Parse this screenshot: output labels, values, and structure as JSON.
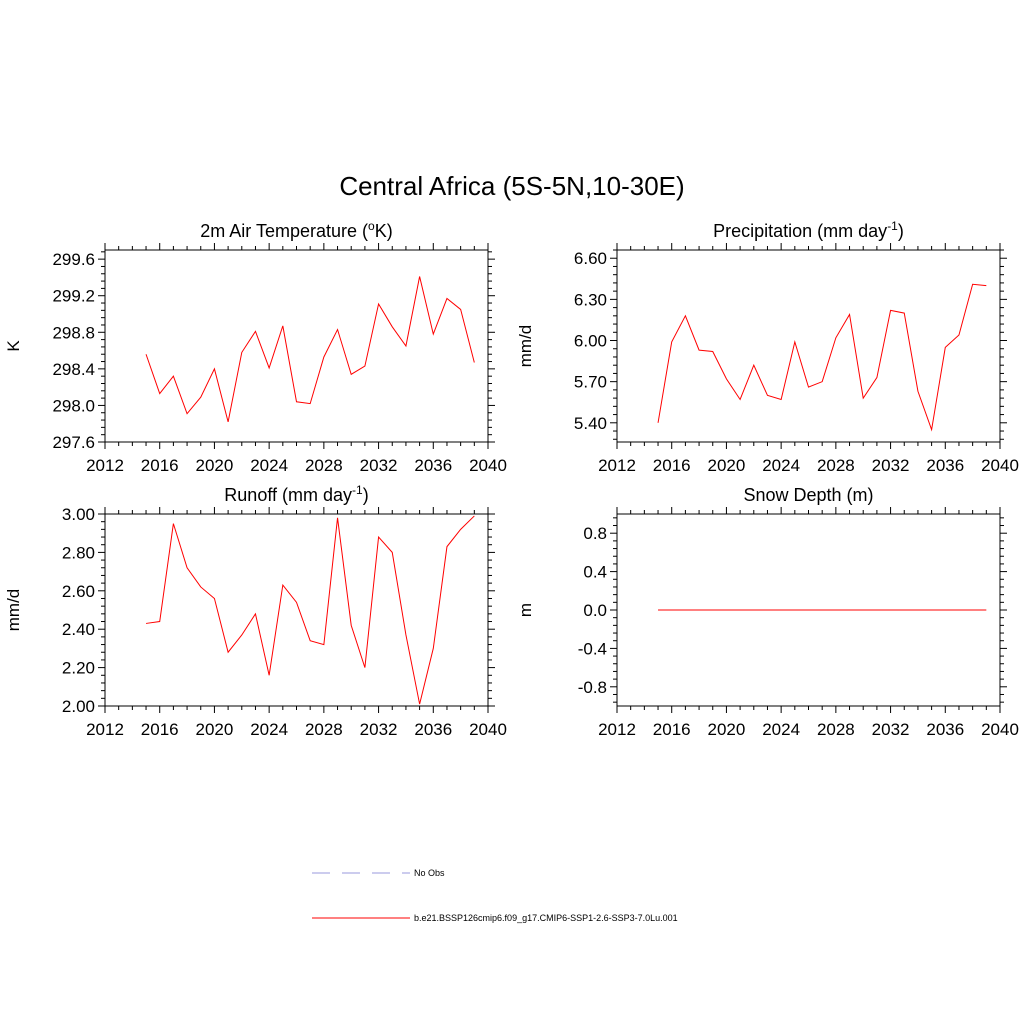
{
  "figure": {
    "title": "Central Africa (5S-5N,10-30E)"
  },
  "legend": {
    "items": [
      {
        "label": "No Obs",
        "color": "#9999dd",
        "style": "dashed"
      },
      {
        "label": "b.e21.BSSP126cmip6.f09_g17.CMIP6-SSP1-2.6-SSP3-7.0Lu.001",
        "color": "#ff0000",
        "style": "solid"
      }
    ]
  },
  "chart_data": [
    {
      "type": "line",
      "title_main": "2m Air Temperature (",
      "title_sup_pre": "o",
      "title_after_pre": "K)",
      "title_sup_post": "",
      "title_end": "",
      "xlabel": "",
      "ylabel": "K",
      "xlim": [
        2012,
        2040
      ],
      "ylim": [
        297.6,
        299.7
      ],
      "xticks": [
        2012,
        2016,
        2020,
        2024,
        2028,
        2032,
        2036,
        2040
      ],
      "yticks": [
        "297.6",
        "298.0",
        "298.4",
        "298.8",
        "299.2",
        "299.6"
      ],
      "series": [
        {
          "color": "#ff0000",
          "x": [
            2015,
            2016,
            2017,
            2018,
            2019,
            2020,
            2021,
            2022,
            2023,
            2024,
            2025,
            2026,
            2027,
            2028,
            2029,
            2030,
            2031,
            2032,
            2033,
            2034,
            2035,
            2036,
            2037,
            2038,
            2039
          ],
          "y": [
            298.56,
            298.13,
            298.32,
            297.91,
            298.09,
            298.4,
            297.82,
            298.58,
            298.81,
            298.41,
            298.87,
            298.04,
            298.02,
            298.53,
            298.83,
            298.34,
            298.43,
            299.11,
            298.86,
            298.65,
            299.41,
            298.78,
            299.17,
            299.05,
            298.47
          ]
        }
      ]
    },
    {
      "type": "line",
      "title_main": "Precipitation (mm day",
      "title_sup_pre": "",
      "title_after_pre": "",
      "title_sup_post": "-1",
      "title_end": ")",
      "xlabel": "",
      "ylabel": "mm/d",
      "xlim": [
        2012,
        2040
      ],
      "ylim": [
        5.26,
        6.66
      ],
      "xticks": [
        2012,
        2016,
        2020,
        2024,
        2028,
        2032,
        2036,
        2040
      ],
      "yticks": [
        "5.40",
        "5.70",
        "6.00",
        "6.30",
        "6.60"
      ],
      "series": [
        {
          "color": "#ff0000",
          "x": [
            2015,
            2016,
            2017,
            2018,
            2019,
            2020,
            2021,
            2022,
            2023,
            2024,
            2025,
            2026,
            2027,
            2028,
            2029,
            2030,
            2031,
            2032,
            2033,
            2034,
            2035,
            2036,
            2037,
            2038,
            2039
          ],
          "y": [
            5.4,
            5.99,
            6.18,
            5.93,
            5.92,
            5.72,
            5.57,
            5.82,
            5.6,
            5.57,
            5.99,
            5.66,
            5.7,
            6.02,
            6.19,
            5.58,
            5.73,
            6.22,
            6.2,
            5.63,
            5.35,
            5.95,
            6.04,
            6.41,
            6.4
          ]
        }
      ]
    },
    {
      "type": "line",
      "title_main": "Runoff (mm day",
      "title_sup_pre": "",
      "title_after_pre": "",
      "title_sup_post": "-1",
      "title_end": ")",
      "xlabel": "",
      "ylabel": "mm/d",
      "xlim": [
        2012,
        2040
      ],
      "ylim": [
        2.0,
        3.0
      ],
      "xticks": [
        2012,
        2016,
        2020,
        2024,
        2028,
        2032,
        2036,
        2040
      ],
      "yticks": [
        "2.00",
        "2.20",
        "2.40",
        "2.60",
        "2.80",
        "3.00"
      ],
      "series": [
        {
          "color": "#ff0000",
          "x": [
            2015,
            2016,
            2017,
            2018,
            2019,
            2020,
            2021,
            2022,
            2023,
            2024,
            2025,
            2026,
            2027,
            2028,
            2029,
            2030,
            2031,
            2032,
            2033,
            2034,
            2035,
            2036,
            2037,
            2038,
            2039
          ],
          "y": [
            2.43,
            2.44,
            2.95,
            2.72,
            2.62,
            2.56,
            2.28,
            2.37,
            2.48,
            2.16,
            2.63,
            2.54,
            2.34,
            2.32,
            2.98,
            2.42,
            2.2,
            2.88,
            2.8,
            2.37,
            2.01,
            2.3,
            2.83,
            2.92,
            2.99
          ]
        }
      ]
    },
    {
      "type": "line",
      "title_main": "Snow Depth (m)",
      "title_sup_pre": "",
      "title_after_pre": "",
      "title_sup_post": "",
      "title_end": "",
      "xlabel": "",
      "ylabel": "m",
      "xlim": [
        2012,
        2040
      ],
      "ylim": [
        -1.0,
        1.0
      ],
      "xticks": [
        2012,
        2016,
        2020,
        2024,
        2028,
        2032,
        2036,
        2040
      ],
      "yticks": [
        "-0.8",
        "-0.4",
        "0.0",
        "0.4",
        "0.8"
      ],
      "series": [
        {
          "color": "#ff0000",
          "x": [
            2015,
            2016,
            2017,
            2018,
            2019,
            2020,
            2021,
            2022,
            2023,
            2024,
            2025,
            2026,
            2027,
            2028,
            2029,
            2030,
            2031,
            2032,
            2033,
            2034,
            2035,
            2036,
            2037,
            2038,
            2039
          ],
          "y": [
            0,
            0,
            0,
            0,
            0,
            0,
            0,
            0,
            0,
            0,
            0,
            0,
            0,
            0,
            0,
            0,
            0,
            0,
            0,
            0,
            0,
            0,
            0,
            0,
            0
          ]
        }
      ]
    }
  ]
}
